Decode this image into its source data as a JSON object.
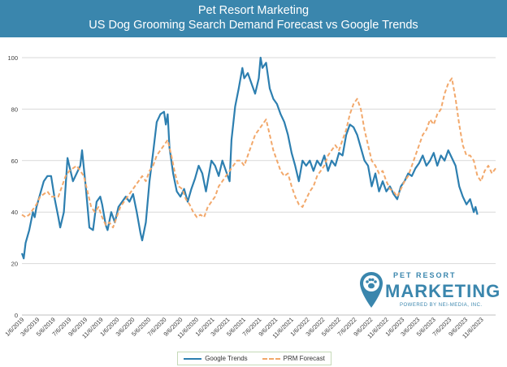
{
  "header": {
    "title": "Pet Resort Marketing",
    "subtitle": "US Dog Grooming Search Demand Forecast vs Google Trends"
  },
  "logo": {
    "top_text": "PET RESORT",
    "main_text": "MARKETING",
    "sub_text": "POWERED BY NEI-MEDIA, INC."
  },
  "colors": {
    "header_bg": "#3a86ad",
    "google_trends": "#2d7fb0",
    "prm_forecast": "#f2a86b",
    "grid": "#d9d9d9"
  },
  "chart_data": {
    "type": "line",
    "title": "US Dog Grooming Search Demand Forecast vs Google Trends",
    "ylim": [
      0,
      100
    ],
    "yticks": [
      0,
      20,
      40,
      60,
      80,
      100
    ],
    "xlim": [
      "2019-01-06",
      "2023-12-31"
    ],
    "xtick_labels": [
      "1/6/2019",
      "3/6/2019",
      "5/6/2019",
      "7/6/2019",
      "9/6/2019",
      "11/6/2019",
      "1/6/2020",
      "3/6/2020",
      "5/6/2020",
      "7/6/2020",
      "9/6/2020",
      "11/6/2020",
      "1/6/2021",
      "3/6/2021",
      "5/6/2021",
      "7/6/2021",
      "9/6/2021",
      "11/6/2021",
      "1/6/2022",
      "3/6/2022",
      "5/6/2022",
      "7/6/2022",
      "9/6/2022",
      "11/6/2022",
      "1/6/2023",
      "3/6/2023",
      "5/6/2023",
      "7/6/2023",
      "9/6/2023",
      "11/6/2023"
    ],
    "grid": true,
    "legend_position": "bottom",
    "series": [
      {
        "name": "Google Trends",
        "style": "solid",
        "points": [
          [
            "2019-01-06",
            24
          ],
          [
            "2019-01-13",
            22
          ],
          [
            "2019-01-20",
            28
          ],
          [
            "2019-02-03",
            33
          ],
          [
            "2019-02-17",
            40
          ],
          [
            "2019-02-24",
            38
          ],
          [
            "2019-03-03",
            42
          ],
          [
            "2019-03-17",
            47
          ],
          [
            "2019-03-31",
            52
          ],
          [
            "2019-04-14",
            54
          ],
          [
            "2019-04-28",
            54
          ],
          [
            "2019-05-12",
            45
          ],
          [
            "2019-05-26",
            38
          ],
          [
            "2019-06-02",
            34
          ],
          [
            "2019-06-16",
            40
          ],
          [
            "2019-06-30",
            61
          ],
          [
            "2019-07-07",
            58
          ],
          [
            "2019-07-21",
            52
          ],
          [
            "2019-08-04",
            55
          ],
          [
            "2019-08-18",
            58
          ],
          [
            "2019-08-25",
            64
          ],
          [
            "2019-09-08",
            50
          ],
          [
            "2019-09-22",
            34
          ],
          [
            "2019-10-06",
            33
          ],
          [
            "2019-10-20",
            44
          ],
          [
            "2019-11-03",
            46
          ],
          [
            "2019-11-10",
            43
          ],
          [
            "2019-11-24",
            35
          ],
          [
            "2019-12-01",
            33
          ],
          [
            "2019-12-15",
            40
          ],
          [
            "2019-12-29",
            36
          ],
          [
            "2020-01-12",
            42
          ],
          [
            "2020-01-26",
            44
          ],
          [
            "2020-02-09",
            46
          ],
          [
            "2020-02-23",
            44
          ],
          [
            "2020-03-08",
            47
          ],
          [
            "2020-03-22",
            40
          ],
          [
            "2020-04-05",
            32
          ],
          [
            "2020-04-12",
            29
          ],
          [
            "2020-04-26",
            36
          ],
          [
            "2020-05-10",
            52
          ],
          [
            "2020-05-24",
            63
          ],
          [
            "2020-06-07",
            75
          ],
          [
            "2020-06-21",
            78
          ],
          [
            "2020-07-05",
            79
          ],
          [
            "2020-07-12",
            74
          ],
          [
            "2020-07-19",
            78
          ],
          [
            "2020-07-26",
            65
          ],
          [
            "2020-08-09",
            55
          ],
          [
            "2020-08-23",
            48
          ],
          [
            "2020-09-06",
            46
          ],
          [
            "2020-09-20",
            49
          ],
          [
            "2020-10-04",
            44
          ],
          [
            "2020-10-18",
            49
          ],
          [
            "2020-11-01",
            53
          ],
          [
            "2020-11-15",
            58
          ],
          [
            "2020-11-29",
            55
          ],
          [
            "2020-12-13",
            48
          ],
          [
            "2020-12-20",
            52
          ],
          [
            "2021-01-03",
            60
          ],
          [
            "2021-01-17",
            58
          ],
          [
            "2021-01-31",
            54
          ],
          [
            "2021-02-14",
            60
          ],
          [
            "2021-02-28",
            56
          ],
          [
            "2021-03-14",
            52
          ],
          [
            "2021-03-21",
            68
          ],
          [
            "2021-04-04",
            81
          ],
          [
            "2021-04-18",
            88
          ],
          [
            "2021-05-02",
            96
          ],
          [
            "2021-05-09",
            92
          ],
          [
            "2021-05-23",
            94
          ],
          [
            "2021-06-06",
            90
          ],
          [
            "2021-06-20",
            86
          ],
          [
            "2021-07-04",
            92
          ],
          [
            "2021-07-11",
            100
          ],
          [
            "2021-07-18",
            96
          ],
          [
            "2021-08-01",
            98
          ],
          [
            "2021-08-15",
            88
          ],
          [
            "2021-08-29",
            84
          ],
          [
            "2021-09-12",
            82
          ],
          [
            "2021-09-26",
            78
          ],
          [
            "2021-10-10",
            75
          ],
          [
            "2021-10-24",
            70
          ],
          [
            "2021-11-07",
            63
          ],
          [
            "2021-11-21",
            58
          ],
          [
            "2021-12-05",
            52
          ],
          [
            "2021-12-19",
            60
          ],
          [
            "2022-01-02",
            58
          ],
          [
            "2022-01-16",
            60
          ],
          [
            "2022-01-30",
            56
          ],
          [
            "2022-02-13",
            60
          ],
          [
            "2022-02-27",
            58
          ],
          [
            "2022-03-13",
            62
          ],
          [
            "2022-03-27",
            56
          ],
          [
            "2022-04-10",
            60
          ],
          [
            "2022-04-24",
            58
          ],
          [
            "2022-05-08",
            63
          ],
          [
            "2022-05-22",
            62
          ],
          [
            "2022-06-05",
            70
          ],
          [
            "2022-06-19",
            74
          ],
          [
            "2022-07-03",
            73
          ],
          [
            "2022-07-17",
            70
          ],
          [
            "2022-07-31",
            65
          ],
          [
            "2022-08-14",
            60
          ],
          [
            "2022-08-28",
            58
          ],
          [
            "2022-09-11",
            50
          ],
          [
            "2022-09-25",
            55
          ],
          [
            "2022-10-09",
            48
          ],
          [
            "2022-10-23",
            52
          ],
          [
            "2022-11-06",
            48
          ],
          [
            "2022-11-20",
            50
          ],
          [
            "2022-12-04",
            47
          ],
          [
            "2022-12-18",
            45
          ],
          [
            "2023-01-01",
            50
          ],
          [
            "2023-01-15",
            52
          ],
          [
            "2023-01-29",
            55
          ],
          [
            "2023-02-12",
            54
          ],
          [
            "2023-02-26",
            57
          ],
          [
            "2023-03-12",
            59
          ],
          [
            "2023-03-26",
            62
          ],
          [
            "2023-04-09",
            58
          ],
          [
            "2023-04-23",
            60
          ],
          [
            "2023-05-07",
            63
          ],
          [
            "2023-05-21",
            58
          ],
          [
            "2023-06-04",
            62
          ],
          [
            "2023-06-18",
            60
          ],
          [
            "2023-07-02",
            64
          ],
          [
            "2023-07-16",
            61
          ],
          [
            "2023-07-30",
            58
          ],
          [
            "2023-08-13",
            50
          ],
          [
            "2023-08-27",
            46
          ],
          [
            "2023-09-10",
            43
          ],
          [
            "2023-09-24",
            45
          ],
          [
            "2023-10-08",
            40
          ],
          [
            "2023-10-15",
            42
          ],
          [
            "2023-10-22",
            39
          ]
        ]
      },
      {
        "name": "PRM Forecast",
        "style": "dashed",
        "points": [
          [
            "2019-01-06",
            39
          ],
          [
            "2019-01-20",
            38
          ],
          [
            "2019-02-03",
            39
          ],
          [
            "2019-02-17",
            41
          ],
          [
            "2019-03-03",
            43
          ],
          [
            "2019-03-17",
            46
          ],
          [
            "2019-03-31",
            47
          ],
          [
            "2019-04-14",
            48
          ],
          [
            "2019-04-28",
            46
          ],
          [
            "2019-05-12",
            46
          ],
          [
            "2019-05-26",
            46
          ],
          [
            "2019-06-09",
            50
          ],
          [
            "2019-06-23",
            54
          ],
          [
            "2019-07-07",
            56
          ],
          [
            "2019-07-21",
            57
          ],
          [
            "2019-08-04",
            58
          ],
          [
            "2019-08-18",
            56
          ],
          [
            "2019-09-01",
            54
          ],
          [
            "2019-09-15",
            48
          ],
          [
            "2019-09-29",
            42
          ],
          [
            "2019-10-13",
            40
          ],
          [
            "2019-10-27",
            42
          ],
          [
            "2019-11-10",
            38
          ],
          [
            "2019-11-24",
            35
          ],
          [
            "2019-12-08",
            36
          ],
          [
            "2019-12-22",
            34
          ],
          [
            "2020-01-05",
            38
          ],
          [
            "2020-01-19",
            42
          ],
          [
            "2020-02-02",
            44
          ],
          [
            "2020-02-16",
            46
          ],
          [
            "2020-03-01",
            48
          ],
          [
            "2020-03-15",
            50
          ],
          [
            "2020-03-29",
            52
          ],
          [
            "2020-04-12",
            54
          ],
          [
            "2020-04-26",
            52
          ],
          [
            "2020-05-10",
            56
          ],
          [
            "2020-05-24",
            58
          ],
          [
            "2020-06-07",
            62
          ],
          [
            "2020-06-21",
            64
          ],
          [
            "2020-07-05",
            66
          ],
          [
            "2020-07-19",
            68
          ],
          [
            "2020-08-02",
            62
          ],
          [
            "2020-08-16",
            55
          ],
          [
            "2020-08-30",
            50
          ],
          [
            "2020-09-13",
            49
          ],
          [
            "2020-09-27",
            45
          ],
          [
            "2020-10-11",
            43
          ],
          [
            "2020-10-25",
            40
          ],
          [
            "2020-11-08",
            38
          ],
          [
            "2020-11-22",
            39
          ],
          [
            "2020-12-06",
            38
          ],
          [
            "2020-12-20",
            42
          ],
          [
            "2021-01-03",
            44
          ],
          [
            "2021-01-17",
            46
          ],
          [
            "2021-01-31",
            50
          ],
          [
            "2021-02-14",
            52
          ],
          [
            "2021-02-28",
            54
          ],
          [
            "2021-03-14",
            56
          ],
          [
            "2021-03-28",
            58
          ],
          [
            "2021-04-11",
            60
          ],
          [
            "2021-04-25",
            60
          ],
          [
            "2021-05-09",
            58
          ],
          [
            "2021-05-23",
            62
          ],
          [
            "2021-06-06",
            66
          ],
          [
            "2021-06-20",
            70
          ],
          [
            "2021-07-04",
            72
          ],
          [
            "2021-07-18",
            74
          ],
          [
            "2021-08-01",
            76
          ],
          [
            "2021-08-15",
            70
          ],
          [
            "2021-08-29",
            64
          ],
          [
            "2021-09-12",
            60
          ],
          [
            "2021-09-26",
            56
          ],
          [
            "2021-10-10",
            54
          ],
          [
            "2021-10-24",
            55
          ],
          [
            "2021-11-07",
            50
          ],
          [
            "2021-11-21",
            46
          ],
          [
            "2021-12-05",
            43
          ],
          [
            "2021-12-19",
            42
          ],
          [
            "2022-01-02",
            45
          ],
          [
            "2022-01-16",
            48
          ],
          [
            "2022-01-30",
            50
          ],
          [
            "2022-02-13",
            54
          ],
          [
            "2022-02-27",
            56
          ],
          [
            "2022-03-13",
            58
          ],
          [
            "2022-03-27",
            62
          ],
          [
            "2022-04-10",
            64
          ],
          [
            "2022-04-24",
            66
          ],
          [
            "2022-05-08",
            64
          ],
          [
            "2022-05-22",
            68
          ],
          [
            "2022-06-05",
            72
          ],
          [
            "2022-06-19",
            78
          ],
          [
            "2022-07-03",
            82
          ],
          [
            "2022-07-17",
            84
          ],
          [
            "2022-07-31",
            80
          ],
          [
            "2022-08-14",
            72
          ],
          [
            "2022-08-28",
            66
          ],
          [
            "2022-09-11",
            60
          ],
          [
            "2022-09-25",
            58
          ],
          [
            "2022-10-09",
            55
          ],
          [
            "2022-10-23",
            56
          ],
          [
            "2022-11-06",
            52
          ],
          [
            "2022-11-20",
            49
          ],
          [
            "2022-12-04",
            48
          ],
          [
            "2022-12-18",
            46
          ],
          [
            "2023-01-01",
            49
          ],
          [
            "2023-01-15",
            52
          ],
          [
            "2023-01-29",
            54
          ],
          [
            "2023-02-12",
            58
          ],
          [
            "2023-02-26",
            62
          ],
          [
            "2023-03-12",
            66
          ],
          [
            "2023-03-26",
            70
          ],
          [
            "2023-04-09",
            72
          ],
          [
            "2023-04-23",
            76
          ],
          [
            "2023-05-07",
            74
          ],
          [
            "2023-05-21",
            78
          ],
          [
            "2023-06-04",
            80
          ],
          [
            "2023-06-18",
            86
          ],
          [
            "2023-07-02",
            90
          ],
          [
            "2023-07-16",
            92
          ],
          [
            "2023-07-30",
            84
          ],
          [
            "2023-08-13",
            74
          ],
          [
            "2023-08-27",
            66
          ],
          [
            "2023-09-10",
            62
          ],
          [
            "2023-09-24",
            62
          ],
          [
            "2023-10-08",
            60
          ],
          [
            "2023-10-22",
            54
          ],
          [
            "2023-11-05",
            52
          ],
          [
            "2023-11-19",
            56
          ],
          [
            "2023-12-03",
            58
          ],
          [
            "2023-12-17",
            55
          ],
          [
            "2023-12-31",
            57
          ]
        ]
      }
    ]
  }
}
